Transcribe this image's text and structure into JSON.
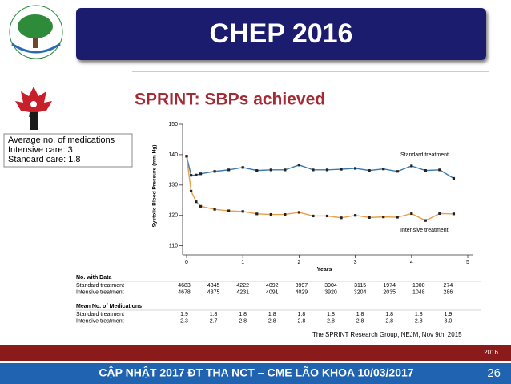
{
  "header": {
    "title": "CHEP 2016"
  },
  "info_box": {
    "lines": [
      "Average no. of medications",
      "Intensive care: 3",
      "Standard care: 1.8"
    ]
  },
  "chart_data": {
    "type": "line",
    "title": "SPRINT: SBPs achieved",
    "x_label": "Years",
    "y_label": "Systolic Blood Pressure (mm Hg)",
    "x": [
      0,
      0.08,
      0.17,
      0.25,
      0.5,
      0.75,
      1,
      1.25,
      1.5,
      1.75,
      2,
      2.25,
      2.5,
      2.75,
      3,
      3.25,
      3.5,
      3.75,
      4,
      4.25,
      4.5,
      4.75
    ],
    "xlim": [
      0,
      5
    ],
    "xticks": [
      0,
      1,
      2,
      3,
      4,
      5
    ],
    "ylim": [
      107,
      150
    ],
    "yticks": [
      110,
      120,
      130,
      140,
      150
    ],
    "marker_color": "#222222",
    "series": [
      {
        "name": "Standard treatment",
        "color": "#3a7ab0",
        "values": [
          139.5,
          133.2,
          133.3,
          133.7,
          134.5,
          135,
          135.8,
          134.8,
          135,
          135,
          136.6,
          135,
          135,
          135.2,
          135.5,
          134.8,
          135.3,
          134.5,
          136.3,
          134.8,
          135,
          132.2
        ]
      },
      {
        "name": "Intensive treatment",
        "color": "#e8a04a",
        "values": [
          139.5,
          128,
          124.5,
          123,
          122,
          121.5,
          121.3,
          120.5,
          120.3,
          120.3,
          121,
          119.8,
          119.8,
          119.2,
          120,
          119.3,
          119.5,
          119.4,
          120.6,
          118.3,
          120.6,
          120.5
        ]
      }
    ]
  },
  "table": {
    "sections": [
      {
        "title": "No. with Data",
        "rows": [
          [
            "Standard treatment",
            "4683",
            "4345",
            "4222",
            "4092",
            "3997",
            "3904",
            "3115",
            "1974",
            "1000",
            "274"
          ],
          [
            "Intensive treatment",
            "4678",
            "4375",
            "4231",
            "4091",
            "4029",
            "3920",
            "3204",
            "2035",
            "1048",
            "286"
          ]
        ]
      },
      {
        "title": "Mean No. of Medications",
        "rows": [
          [
            "Standard treatment",
            "1.9",
            "1.8",
            "1.8",
            "1.8",
            "1.8",
            "1.8",
            "1.8",
            "1.8",
            "1.8",
            "1.9"
          ],
          [
            "Intensive treatment",
            "2.3",
            "2.7",
            "2.8",
            "2.8",
            "2.8",
            "2.8",
            "2.8",
            "2.8",
            "2.8",
            "3.0"
          ]
        ]
      }
    ]
  },
  "citation": "The SPRINT Research Group, NEJM, Nov 9th, 2015",
  "footer": {
    "year": "2016",
    "text": "CẬP NHẬT 2017 ĐT THA NCT – CME LÃO KHOA 10/03/2017",
    "page": "26"
  }
}
